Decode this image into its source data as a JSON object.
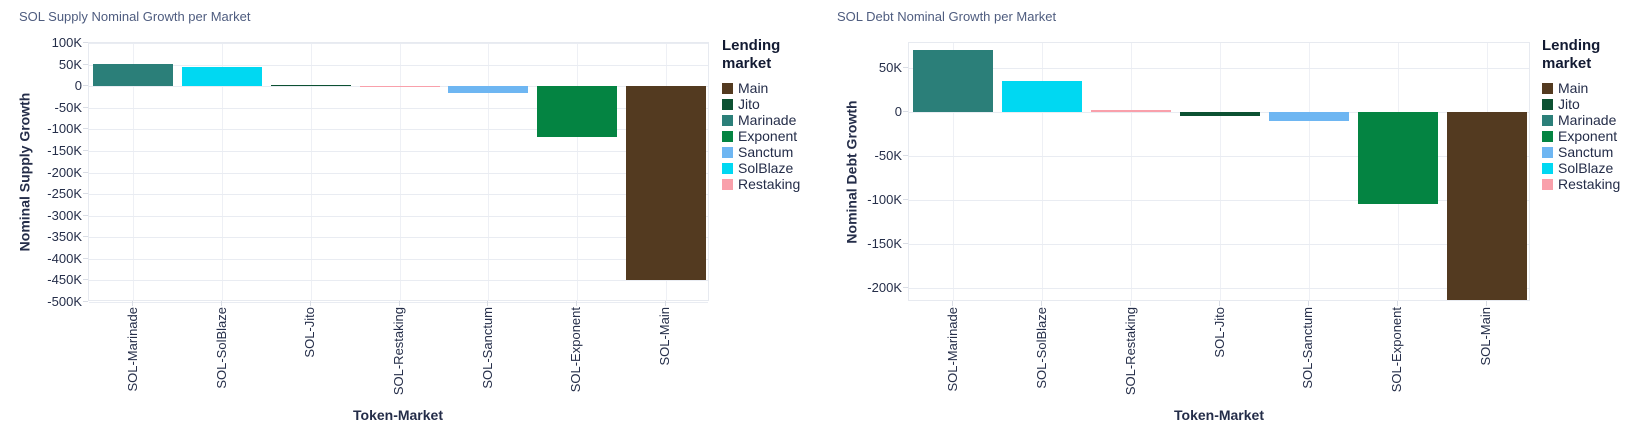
{
  "palette": {
    "Main": "#533a20",
    "Jito": "#0c5132",
    "Marinade": "#2b7f79",
    "Exponent": "#048442",
    "Sanctum": "#6eb6f2",
    "SolBlaze": "#00d8f2",
    "Restaking": "#f9a0ab"
  },
  "legend": {
    "title_lines": [
      "Lending",
      "market"
    ],
    "items": [
      "Main",
      "Jito",
      "Marinade",
      "Exponent",
      "Sanctum",
      "SolBlaze",
      "Restaking"
    ]
  },
  "chart_data": [
    {
      "type": "bar",
      "title": "SOL Supply Nominal Growth per Market",
      "xlabel": "Token-Market",
      "ylabel": "Nominal Supply Growth",
      "categories": [
        "SOL-Marinade",
        "SOL-SolBlaze",
        "SOL-Jito",
        "SOL-Restaking",
        "SOL-Sanctum",
        "SOL-Exponent",
        "SOL-Main"
      ],
      "markets": [
        "Marinade",
        "SolBlaze",
        "Jito",
        "Restaking",
        "Sanctum",
        "Exponent",
        "Main"
      ],
      "values": [
        52000,
        44000,
        3000,
        300,
        -15000,
        -118000,
        -450000
      ],
      "ylim": [
        -500000,
        100000
      ],
      "yticks": [
        100000,
        50000,
        0,
        -50000,
        -100000,
        -150000,
        -200000,
        -250000,
        -300000,
        -350000,
        -400000,
        -450000,
        -500000
      ],
      "ytick_labels": [
        "100K",
        "50K",
        "0",
        "-50K",
        "-100K",
        "-150K",
        "-200K",
        "-250K",
        "-300K",
        "-350K",
        "-400K",
        "-450K",
        "-500K"
      ],
      "grid": true,
      "legend_position": "right"
    },
    {
      "type": "bar",
      "title": "SOL Debt Nominal Growth per Market",
      "xlabel": "Token-Market",
      "ylabel": "Nominal Debt Growth",
      "categories": [
        "SOL-Marinade",
        "SOL-SolBlaze",
        "SOL-Restaking",
        "SOL-Jito",
        "SOL-Sanctum",
        "SOL-Exponent",
        "SOL-Main"
      ],
      "markets": [
        "Marinade",
        "SolBlaze",
        "Restaking",
        "Jito",
        "Sanctum",
        "Exponent",
        "Main"
      ],
      "values": [
        70000,
        35000,
        2500,
        -5000,
        -10000,
        -105000,
        -214000
      ],
      "ylim": [
        -216000,
        78000
      ],
      "yticks": [
        50000,
        0,
        -50000,
        -100000,
        -150000,
        -200000
      ],
      "ytick_labels": [
        "50K",
        "0",
        "-50K",
        "-100K",
        "-150K",
        "-200K"
      ],
      "grid": true,
      "legend_position": "right"
    }
  ]
}
